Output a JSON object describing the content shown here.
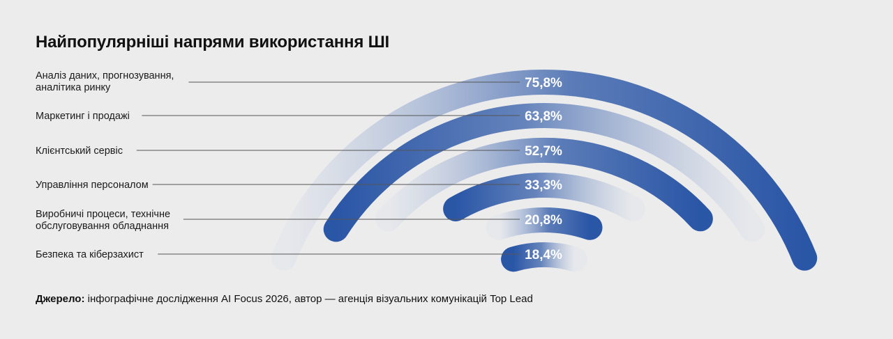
{
  "title": "Найпопулярніші напрями використання ШІ",
  "source": {
    "label": "Джерело:",
    "text": " інфографічне дослідження AI Focus 2026, автор — агенція візуальних комунікацій Top Lead"
  },
  "colors": {
    "arc_dark": "#2a56a6",
    "arc_light": "#dde2ec",
    "leader_line": "#555555",
    "background": "#ececec"
  },
  "chart_data": {
    "type": "radial-bar",
    "unit": "%",
    "categories": [
      [
        "Аналіз даних, прогнозування,",
        "аналітика ринку"
      ],
      [
        "Маркетинг і продажі"
      ],
      [
        "Клієнтський сервіс"
      ],
      [
        "Управління персоналом"
      ],
      [
        "Виробничі процеси, технічне",
        "обслуговування обладнання"
      ],
      [
        "Безпека та кіберзахист"
      ]
    ],
    "values": [
      75.8,
      63.8,
      52.7,
      33.3,
      20.8,
      18.4
    ],
    "value_labels": [
      "75,8%",
      "63,8%",
      "52,7%",
      "33,3%",
      "20,8%",
      "18,4%"
    ]
  }
}
